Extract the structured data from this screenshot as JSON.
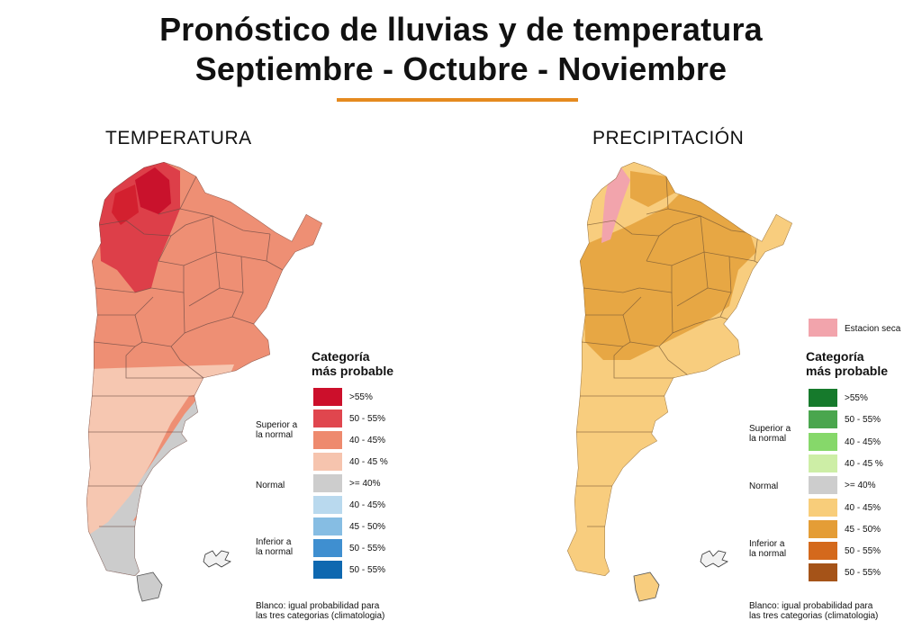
{
  "title": {
    "line1": "Pronóstico de lluvias y de temperatura",
    "line2": "Septiembre - Octubre - Noviembre",
    "accent": "#e58a1f"
  },
  "temperature": {
    "label": "TEMPERATURA",
    "legend": {
      "heading1": "Categoría",
      "heading2": "más probable",
      "groups": {
        "superior1": "Superior a",
        "superior2": "la normal",
        "normal": "Normal",
        "inferior1": "Inferior a",
        "inferior2": "la normal"
      },
      "items": [
        {
          "label": ">55%",
          "color": "#cc0f2b"
        },
        {
          "label": "50 - 55%",
          "color": "#e0464e"
        },
        {
          "label": "40 - 45%",
          "color": "#ee8a6e"
        },
        {
          "label": "40 - 45 %",
          "color": "#f6c4ae"
        },
        {
          "label": ">= 40%",
          "color": "#cdcdcd"
        },
        {
          "label": "40 - 45%",
          "color": "#b9d9ee"
        },
        {
          "label": "45 - 50%",
          "color": "#86bde3"
        },
        {
          "label": "50 - 55%",
          "color": "#3f8fd0"
        },
        {
          "label": "50 - 55%",
          "color": "#0f68b0"
        }
      ],
      "note1": "Blanco: igual probabilidad para",
      "note2": "las tres categorias (climatologia)"
    }
  },
  "precipitation": {
    "label": "PRECIPITACIÓN",
    "legend": {
      "dry_label": "Estacion seca",
      "dry_color": "#f2a4ac",
      "heading1": "Categoría",
      "heading2": "más probable",
      "groups": {
        "superior1": "Superior a",
        "superior2": "la normal",
        "normal": "Normal",
        "inferior1": "Inferior a",
        "inferior2": "la normal"
      },
      "items": [
        {
          "label": ">55%",
          "color": "#167a2c"
        },
        {
          "label": "50 - 55%",
          "color": "#4aa64e"
        },
        {
          "label": "40 - 45%",
          "color": "#86d86a"
        },
        {
          "label": "40 - 45 %",
          "color": "#cdeea6"
        },
        {
          "label": ">= 40%",
          "color": "#cdcdcd"
        },
        {
          "label": "40 - 45%",
          "color": "#f8cd7a"
        },
        {
          "label": "45 - 50%",
          "color": "#e49d36"
        },
        {
          "label": "50 - 55%",
          "color": "#d4691c"
        },
        {
          "label": "50 - 55%",
          "color": "#a55318"
        }
      ],
      "note1": "Blanco: igual probabilidad para",
      "note2": "las tres categorias (climatologia)"
    }
  }
}
